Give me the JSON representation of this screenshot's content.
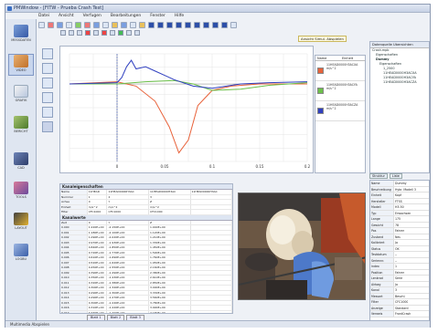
{
  "window": {
    "title": "PMWindow - [FITW - Prueba Crash Test]"
  },
  "menu": [
    "Datei",
    "Ansicht",
    "Verfugen",
    "Bearbeitungen",
    "Fenster",
    "Hilfe"
  ],
  "tooltip": "Ansicht Simul. Abspielen",
  "sidebar": {
    "items": [
      {
        "label": "MESSDATEN",
        "icon": "measurement-icon"
      },
      {
        "label": "VIDEO",
        "icon": "video-icon"
      },
      {
        "label": "GRAFIK",
        "icon": "graph-icon"
      },
      {
        "label": "BERICHT",
        "icon": "report-icon"
      },
      {
        "label": "CAD",
        "icon": "cad-icon"
      },
      {
        "label": "TOOLS",
        "icon": "tools-icon"
      },
      {
        "label": "LAYOUT",
        "icon": "layout-icon"
      },
      {
        "label": "LOGBU",
        "icon": "logbook-icon"
      }
    ]
  },
  "series_panel": {
    "headers": [
      "Name",
      "Einheit"
    ],
    "rows": [
      {
        "color": "#e8623a",
        "name": "11HEAD0000H3ACXA",
        "unit": "m/s^2"
      },
      {
        "color": "#6cc04a",
        "name": "11HEAD0000H3ACYA",
        "unit": "m/s^2"
      },
      {
        "color": "#3040c0",
        "name": "11HEAD0000H3ACZA",
        "unit": "m/s^2"
      }
    ]
  },
  "chart_data": {
    "type": "line",
    "xlim": [
      -0.05,
      0.2
    ],
    "x_ticks": [
      "0",
      "0.05",
      "0.1",
      "0.15",
      "0.2"
    ],
    "series": [
      {
        "color": "#e8623a",
        "x": [
          -0.05,
          0,
          0.02,
          0.04,
          0.055,
          0.065,
          0.075,
          0.085,
          0.1,
          0.12,
          0.15,
          0.2
        ],
        "y": [
          0,
          0.5,
          -0.5,
          -4,
          -10,
          -16,
          -13,
          -5,
          -1.5,
          -0.5,
          0,
          0
        ]
      },
      {
        "color": "#6cc04a",
        "x": [
          -0.05,
          0,
          0.03,
          0.06,
          0.08,
          0.1,
          0.13,
          0.16,
          0.2
        ],
        "y": [
          0,
          0,
          0.5,
          0.8,
          0,
          -1.5,
          -1.2,
          -0.3,
          0.3
        ]
      },
      {
        "color": "#3040c0",
        "x": [
          -0.05,
          0,
          0.005,
          0.01,
          0.015,
          0.02,
          0.03,
          0.04,
          0.05,
          0.06,
          0.08,
          0.1,
          0.13,
          0.16,
          0.2
        ],
        "y": [
          0,
          0.3,
          1.5,
          4,
          5.5,
          3.5,
          4,
          3,
          2,
          1,
          -0.5,
          -1,
          0,
          0.3,
          0.5
        ]
      }
    ],
    "ylim": [
      -18,
      7
    ]
  },
  "tree": {
    "header": "Datenquelle Ubersichten",
    "items": [
      "Crash.mpb",
      "Eigenschaften",
      "Dummy",
      "Eigenschaften",
      "1_2500",
      "11HEAD0000H3ACXA",
      "11HEAD0000H3ACYA",
      "11HEAD0000H3ACZA"
    ]
  },
  "tree_tabs": [
    "Struktur",
    "Liste"
  ],
  "props": {
    "rows": [
      [
        "Name",
        "Dummy"
      ],
      [
        "Beschreibung",
        "Hybr. Modell 3"
      ],
      [
        "Einheit",
        "Kopf"
      ],
      [
        "Hersteller",
        "FTSS"
      ],
      [
        "Modell",
        "H3-50"
      ],
      [
        "Typ",
        "Erwachsen"
      ],
      [
        "Lange",
        "175"
      ],
      [
        "Gewicht",
        "78"
      ],
      [
        "Pos",
        "Fahrer"
      ],
      [
        "Zustand",
        "Neu"
      ],
      [
        "Kalibriert",
        "Ja"
      ],
      [
        "Status",
        "OK"
      ],
      [
        "Testdatum",
        "--"
      ],
      [
        "Seriennr.",
        "--"
      ],
      [
        "Index",
        "1"
      ],
      [
        "Position",
        "Fahrer"
      ],
      [
        "Lenkrad",
        "Serie"
      ],
      [
        "Airbag",
        "Ja"
      ],
      [
        "Kanal",
        "3"
      ],
      [
        "Messart",
        "Beschl."
      ],
      [
        "Filter",
        "CFC1000"
      ],
      [
        "Anzeige",
        "Standard"
      ],
      [
        "Verweis",
        "FrontCrash"
      ]
    ]
  },
  "grid": {
    "section1_title": "Kanaleigenschaften",
    "section1_rows": [
      [
        "Name",
        "11HEAD",
        "11HEAD0000H3AC",
        "11HEAD0000H3AC",
        "11HEAD0000H3AC"
      ],
      [
        "Nummer",
        "1",
        "2",
        "3",
        ""
      ],
      [
        "Achse",
        "X",
        "Y",
        "Z",
        ""
      ],
      [
        "Einheit",
        "m/s^2",
        "m/s^2",
        "m/s^2",
        ""
      ],
      [
        "Filter",
        "CFC1000",
        "CFC1000",
        "CFC1000",
        ""
      ]
    ],
    "section2_title": "Kanalwerte",
    "section2_rows": [
      [
        "Zeit",
        "X",
        "Y",
        "Z",
        ""
      ],
      [
        "0.000",
        "1.220E+00",
        "-2.150E+00",
        "1.040E+00",
        ""
      ],
      [
        "0.001",
        "1.180E+00",
        "-2.100E+00",
        "1.120E+00",
        ""
      ],
      [
        "0.002",
        "1.090E+00",
        "-2.020E+00",
        "1.210E+00",
        ""
      ],
      [
        "0.003",
        "0.970E+00",
        "-1.930E+00",
        "1.330E+00",
        ""
      ],
      [
        "0.004",
        "0.840E+00",
        "-1.850E+00",
        "1.450E+00",
        ""
      ],
      [
        "0.005",
        "0.720E+00",
        "-1.770E+00",
        "1.590E+00",
        ""
      ],
      [
        "0.006",
        "0.610E+00",
        "-1.690E+00",
        "1.760E+00",
        ""
      ],
      [
        "0.007",
        "0.520E+00",
        "-1.620E+00",
        "1.950E+00",
        ""
      ],
      [
        "0.008",
        "0.450E+00",
        "-1.550E+00",
        "2.160E+00",
        ""
      ],
      [
        "0.009",
        "0.390E+00",
        "-1.490E+00",
        "2.380E+00",
        ""
      ],
      [
        "0.010",
        "0.350E+00",
        "-1.430E+00",
        "2.610E+00",
        ""
      ],
      [
        "0.011",
        "0.320E+00",
        "-1.380E+00",
        "2.850E+00",
        ""
      ],
      [
        "0.012",
        "0.300E+00",
        "-1.340E+00",
        "3.090E+00",
        ""
      ],
      [
        "0.013",
        "0.290E+00",
        "-1.300E+00",
        "3.330E+00",
        ""
      ],
      [
        "0.014",
        "0.290E+00",
        "-1.270E+00",
        "3.560E+00",
        ""
      ],
      [
        "0.015",
        "0.300E+00",
        "-1.240E+00",
        "3.780E+00",
        ""
      ],
      [
        "0.016",
        "0.310E+00",
        "-1.220E+00",
        "3.990E+00",
        ""
      ],
      [
        "0.017",
        "0.330E+00",
        "-1.200E+00",
        "4.180E+00",
        ""
      ],
      [
        "0.018",
        "0.350E+00",
        "-1.190E+00",
        "4.350E+00",
        ""
      ]
    ]
  },
  "grid_tabs": [
    "Blatt 1",
    "Blatt 2",
    "Blatt 3"
  ],
  "status": "Multimedia Abspielen"
}
